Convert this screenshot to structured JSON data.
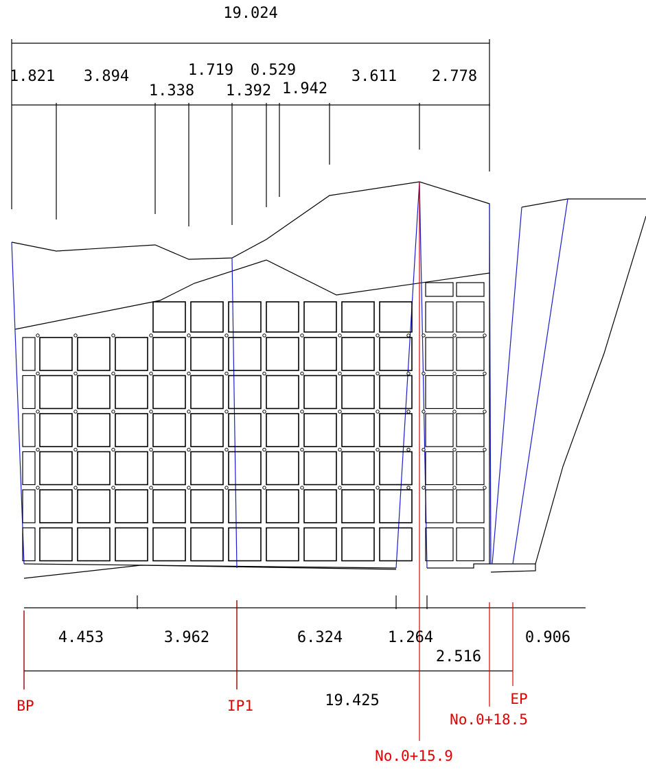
{
  "top_dimensions": {
    "total": "19.024",
    "segments": [
      "1.821",
      "3.894",
      "1.338",
      "1.719",
      "1.392",
      "0.529",
      "1.942",
      "3.611",
      "2.778"
    ]
  },
  "bottom_dimensions": {
    "segments": [
      "4.453",
      "3.962",
      "6.324",
      "1.264",
      "2.516",
      "0.906"
    ],
    "total": "19.425"
  },
  "stations": {
    "bp": "BP",
    "ip1": "IP1",
    "no_15_9": "No.0+15.9",
    "no_18_5": "No.0+18.5",
    "ep": "EP"
  }
}
